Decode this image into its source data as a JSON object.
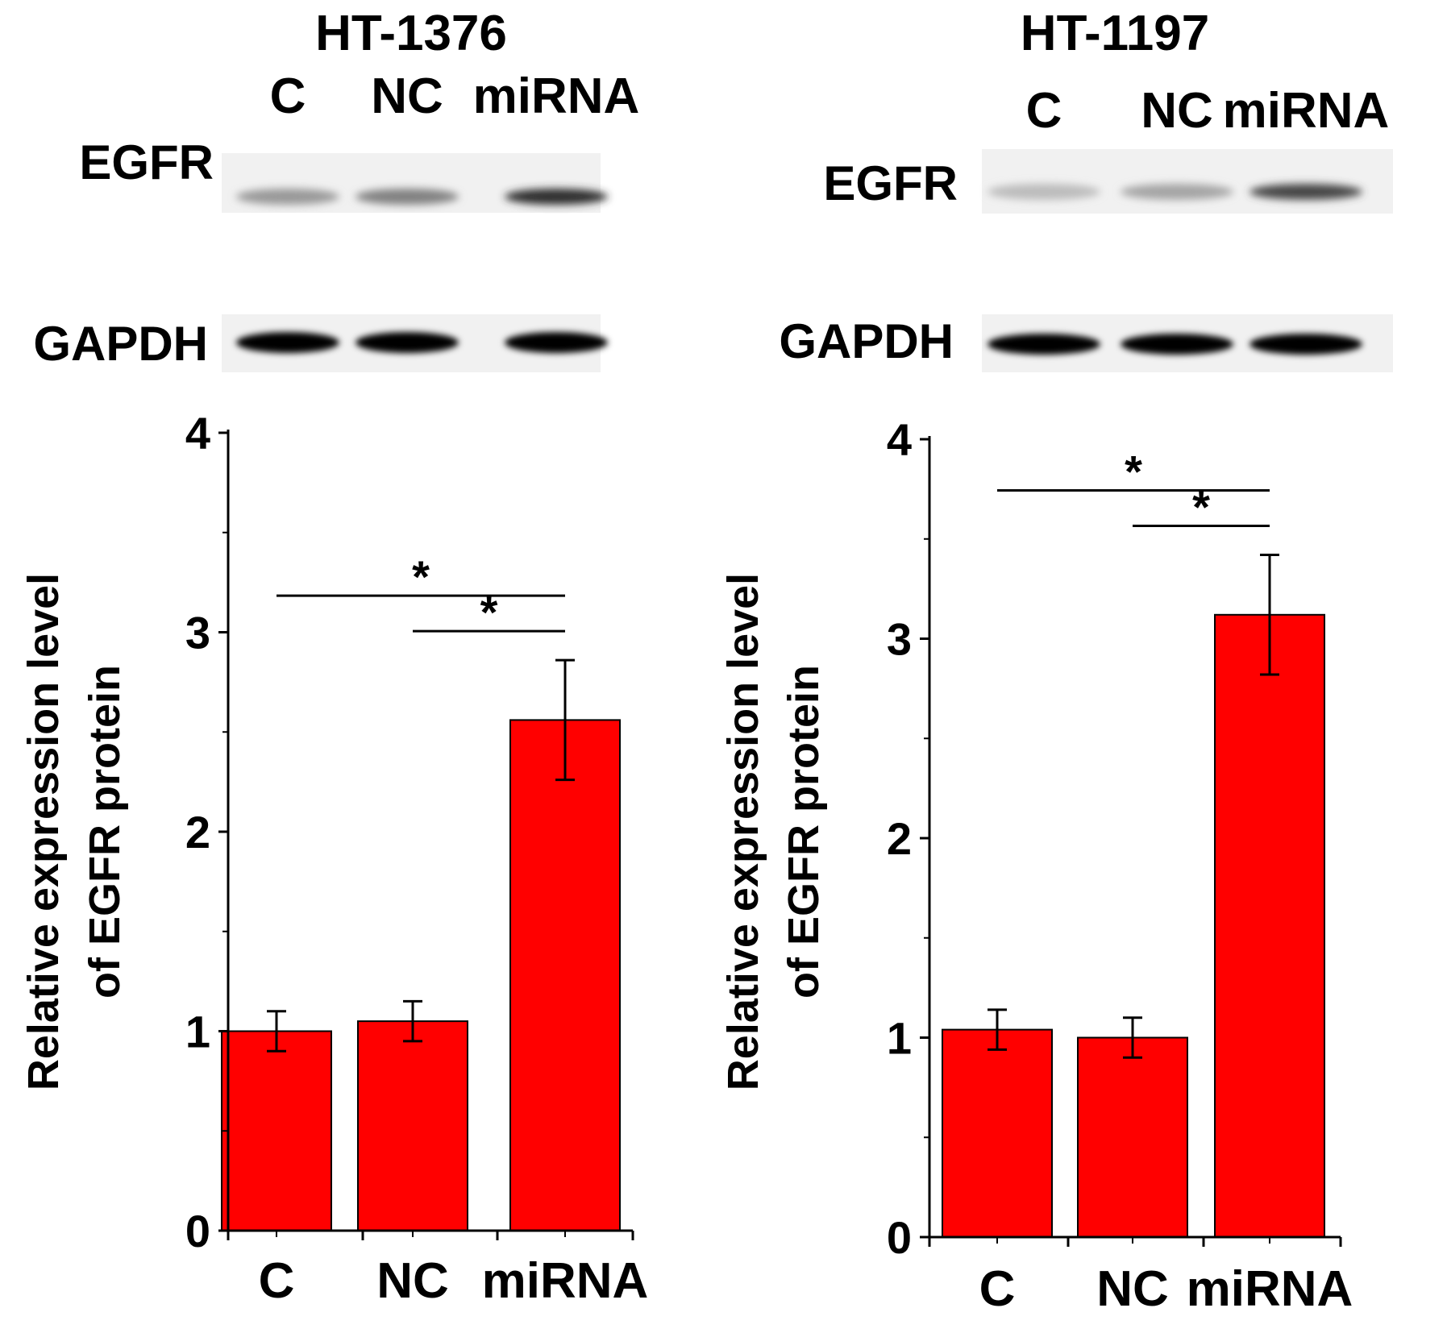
{
  "panels": [
    {
      "cell_line": "HT-1376",
      "lanes": [
        "C",
        "NC",
        "miRNA"
      ],
      "blots": [
        {
          "label": "EGFR",
          "band_intensity": [
            0.35,
            0.45,
            0.8
          ]
        },
        {
          "label": "GAPDH",
          "band_intensity": [
            1.0,
            1.0,
            1.0
          ]
        }
      ]
    },
    {
      "cell_line": "HT-1197",
      "lanes": [
        "C",
        "NC",
        "miRNA"
      ],
      "blots": [
        {
          "label": "EGFR",
          "band_intensity": [
            0.2,
            0.3,
            0.7
          ]
        },
        {
          "label": "GAPDH",
          "band_intensity": [
            1.0,
            1.0,
            1.0
          ]
        }
      ]
    }
  ],
  "chart_data": [
    {
      "type": "bar",
      "categories": [
        "C",
        "NC",
        "miRNA"
      ],
      "values": [
        1.0,
        1.05,
        2.56
      ],
      "error": [
        0.1,
        0.1,
        0.3
      ],
      "ylabel": "Relative expression level of EGFR protein",
      "ylabel_lines": [
        "Relative expression level",
        "of EGFR protein"
      ],
      "ylim": [
        0,
        4
      ],
      "yticks": [
        0,
        1,
        2,
        3,
        4
      ],
      "significance": [
        {
          "from": 0,
          "to": 2,
          "label": "*"
        },
        {
          "from": 1,
          "to": 2,
          "label": "*"
        }
      ],
      "bar_color": "#ff0000"
    },
    {
      "type": "bar",
      "categories": [
        "C",
        "NC",
        "miRNA"
      ],
      "values": [
        1.04,
        1.0,
        3.12
      ],
      "error": [
        0.1,
        0.1,
        0.3
      ],
      "ylabel": "Relative expression level of EGFR protein",
      "ylabel_lines": [
        "Relative expression level",
        "of EGFR protein"
      ],
      "ylim": [
        0,
        4
      ],
      "yticks": [
        0,
        1,
        2,
        3,
        4
      ],
      "significance": [
        {
          "from": 0,
          "to": 2,
          "label": "*"
        },
        {
          "from": 1,
          "to": 2,
          "label": "*"
        }
      ],
      "bar_color": "#ff0000"
    }
  ]
}
